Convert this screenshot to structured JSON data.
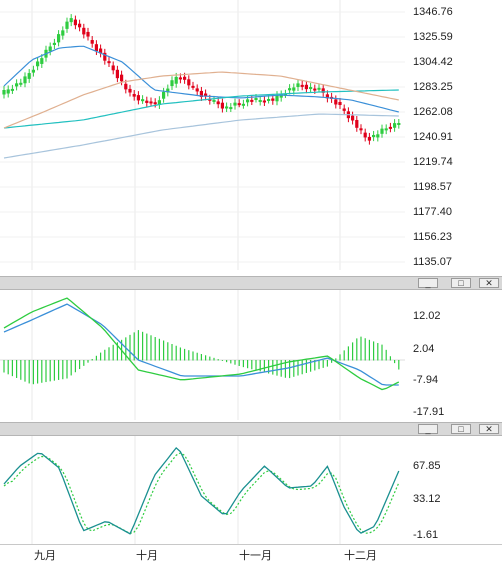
{
  "price_panel": {
    "y_labels": [
      "1346.76",
      "1325.59",
      "1304.42",
      "1283.25",
      "1262.08",
      "1240.91",
      "1219.74",
      "1198.57",
      "1177.40",
      "1156.23",
      "1135.07"
    ],
    "y_range": [
      1135.07,
      1346.76
    ],
    "bull_color": "#2ecc40",
    "bear_color": "#e0001a",
    "ma_colors": [
      "#3a8fd8",
      "#22c0c0",
      "#e0b090",
      "#a8c4dc"
    ]
  },
  "macd_panel": {
    "y_labels": [
      "12.02",
      "2.04",
      "-7.94",
      "-17.91"
    ],
    "y_range": [
      -17.91,
      12.02
    ],
    "line_color": "#3a8fd8",
    "signal_color": "#2ecc40"
  },
  "stoch_panel": {
    "y_labels": [
      "67.85",
      "33.12",
      "-1.61"
    ],
    "y_range": [
      -1.61,
      67.85
    ],
    "k_color": "#1a9090",
    "d_color": "#2ecc40"
  },
  "window_buttons": {
    "minimize": "_",
    "maximize": "□",
    "close": "✕"
  },
  "x_labels": [
    "九月",
    "十月",
    "十一月",
    "十二月"
  ]
}
